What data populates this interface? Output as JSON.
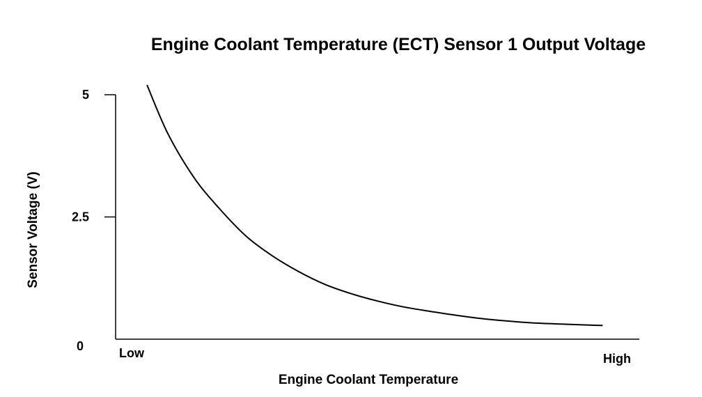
{
  "chart_data": {
    "type": "line",
    "title": "Engine Coolant Temperature (ECT) Sensor 1 Output Voltage",
    "xlabel": "Engine Coolant Temperature",
    "ylabel": "Sensor Voltage (V)",
    "x_tick_labels": [
      "Low",
      "High"
    ],
    "y_ticks": [
      {
        "value": 0,
        "label": "0"
      },
      {
        "value": 2.5,
        "label": "2.5"
      },
      {
        "value": 5,
        "label": "5"
      }
    ],
    "xlim": [
      0,
      1
    ],
    "ylim": [
      0,
      5
    ],
    "grid": false,
    "legend": "none",
    "line_color": "#000000",
    "series": [
      {
        "x": [
          0.06,
          0.1,
          0.15,
          0.2,
          0.25,
          0.3,
          0.35,
          0.4,
          0.45,
          0.5,
          0.55,
          0.6,
          0.65,
          0.7,
          0.75,
          0.8,
          0.85,
          0.9,
          0.93
        ],
        "values": [
          5.2,
          4.2,
          3.3,
          2.65,
          2.1,
          1.7,
          1.38,
          1.12,
          0.93,
          0.78,
          0.66,
          0.57,
          0.49,
          0.42,
          0.37,
          0.33,
          0.31,
          0.29,
          0.28
        ]
      }
    ]
  }
}
